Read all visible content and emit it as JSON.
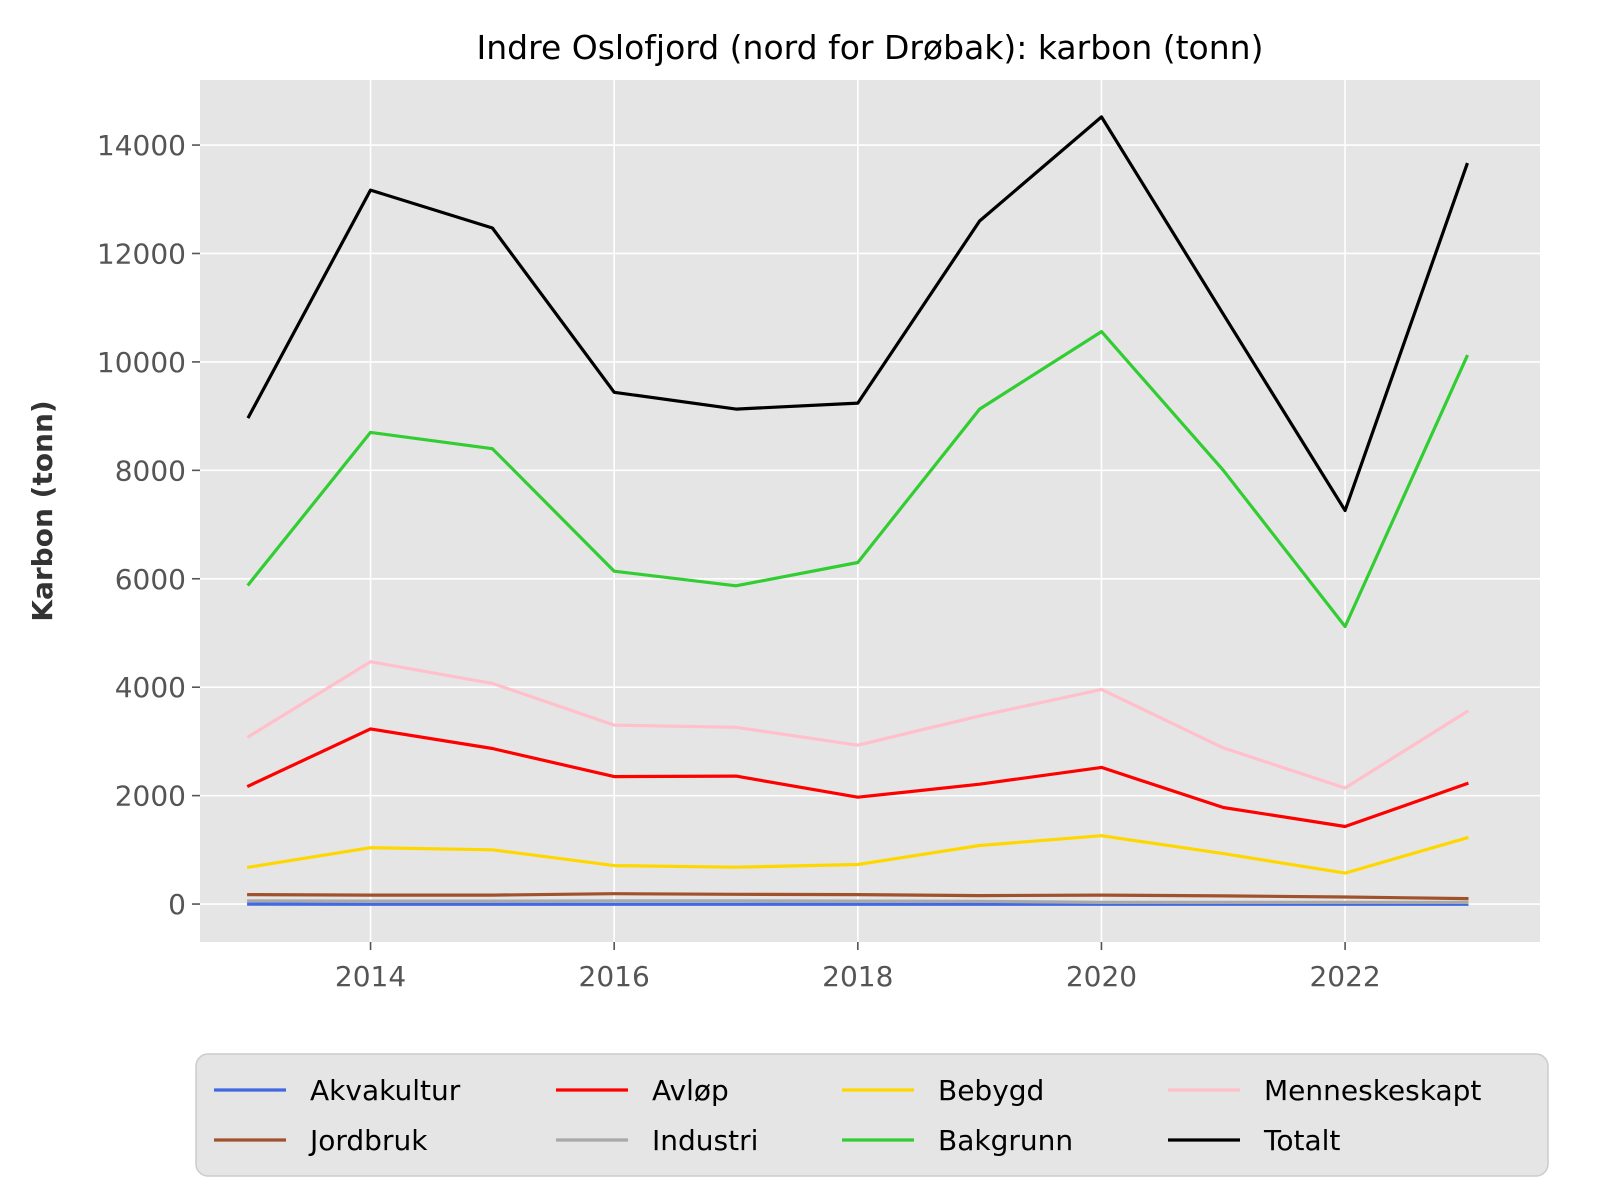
{
  "chart_data": {
    "type": "line",
    "title": "Indre Oslofjord (nord for Drøbak): karbon (tonn)",
    "xlabel": "",
    "ylabel": "Karbon (tonn)",
    "x": [
      2013,
      2014,
      2015,
      2016,
      2017,
      2018,
      2019,
      2020,
      2021,
      2022,
      2023
    ],
    "xlim": [
      2012.6,
      2023.6
    ],
    "ylim": [
      -700,
      15200
    ],
    "x_ticks": [
      2014,
      2016,
      2018,
      2020,
      2022
    ],
    "y_ticks": [
      0,
      2000,
      4000,
      6000,
      8000,
      10000,
      12000,
      14000
    ],
    "grid": true,
    "background": "#e5e5e5",
    "legend_position": "below",
    "series": [
      {
        "name": "Akvakultur",
        "color": "#4169e1",
        "values": [
          0,
          -5,
          -5,
          -5,
          -5,
          -5,
          -5,
          -5,
          -5,
          -5,
          -5
        ]
      },
      {
        "name": "Jordbruk",
        "color": "#a0522d",
        "values": [
          175,
          165,
          165,
          190,
          180,
          175,
          155,
          165,
          150,
          130,
          100
        ]
      },
      {
        "name": "Avløp",
        "color": "#ff0000",
        "values": [
          2180,
          3230,
          2870,
          2350,
          2360,
          1970,
          2210,
          2520,
          1780,
          1430,
          2220
        ]
      },
      {
        "name": "Industri",
        "color": "#a9a9a9",
        "values": [
          60,
          55,
          55,
          60,
          60,
          55,
          50,
          30,
          30,
          30,
          30
        ]
      },
      {
        "name": "Bebygd",
        "color": "#ffd700",
        "values": [
          680,
          1040,
          1000,
          710,
          680,
          730,
          1080,
          1260,
          930,
          570,
          1220
        ]
      },
      {
        "name": "Bakgrunn",
        "color": "#32cd32",
        "values": [
          5900,
          8700,
          8400,
          6140,
          5870,
          6300,
          9130,
          10560,
          8000,
          5120,
          10100
        ]
      },
      {
        "name": "Menneskeskapt",
        "color": "#ffc0cb",
        "values": [
          3090,
          4470,
          4070,
          3300,
          3260,
          2930,
          3470,
          3960,
          2880,
          2140,
          3550
        ]
      },
      {
        "name": "Totalt",
        "color": "#000000",
        "values": [
          8990,
          13170,
          12470,
          9440,
          9130,
          9240,
          12600,
          14520,
          10880,
          7260,
          13640
        ]
      }
    ]
  }
}
